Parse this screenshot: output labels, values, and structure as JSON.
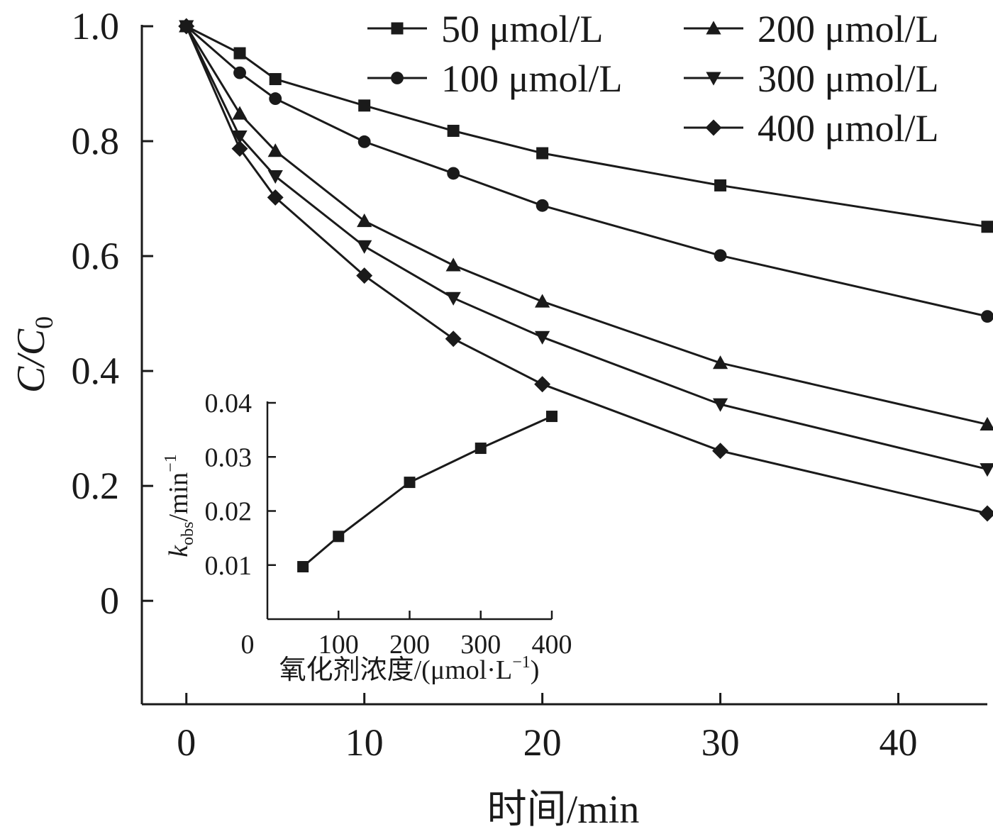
{
  "chart_data": [
    {
      "type": "line",
      "xlabel": "时间/min",
      "ylabel_main": "C/C",
      "ylabel_sub": "0",
      "xlim": [
        -2.5,
        45
      ],
      "ylim": [
        -0.18,
        1.0
      ],
      "xticks": [
        "0",
        "10",
        "20",
        "30",
        "40"
      ],
      "yticks": [
        "0",
        "0.2",
        "0.4",
        "0.6",
        "0.8",
        "1.0"
      ],
      "x": [
        0,
        3,
        5,
        10,
        15,
        20,
        30,
        45
      ],
      "legend_position": "top-right",
      "legend_columns": 2,
      "series": [
        {
          "name": "50 μmol/L",
          "marker": "square",
          "values": [
            1.0,
            0.953,
            0.908,
            0.862,
            0.818,
            0.779,
            0.723,
            0.651
          ]
        },
        {
          "name": "100 μmol/L",
          "marker": "circle",
          "values": [
            1.0,
            0.919,
            0.874,
            0.799,
            0.744,
            0.688,
            0.601,
            0.495
          ]
        },
        {
          "name": "200 μmol/L",
          "marker": "triangle-up",
          "values": [
            1.0,
            0.848,
            0.783,
            0.661,
            0.584,
            0.521,
            0.414,
            0.307
          ]
        },
        {
          "name": "300 μmol/L",
          "marker": "triangle-down",
          "values": [
            1.0,
            0.808,
            0.739,
            0.617,
            0.527,
            0.459,
            0.342,
            0.229
          ]
        },
        {
          "name": "400 μmol/L",
          "marker": "diamond",
          "values": [
            1.0,
            0.787,
            0.702,
            0.566,
            0.456,
            0.377,
            0.261,
            0.152
          ]
        }
      ]
    },
    {
      "type": "line",
      "position": "inset",
      "xlabel_main": "氧化剂浓度/(μmol·L",
      "xlabel_sup": "−1",
      "xlabel_end": ")",
      "ylabel_k": "k",
      "ylabel_sub": "obs",
      "ylabel_unit": "/min",
      "ylabel_sup": "−1",
      "xlim": [
        0,
        400
      ],
      "ylim": [
        0,
        0.04
      ],
      "xticks": [
        "0",
        "100",
        "200",
        "300",
        "400"
      ],
      "yticks": [
        "0.01",
        "0.02",
        "0.03",
        "0.04"
      ],
      "x": [
        50,
        100,
        200,
        300,
        400
      ],
      "series": [
        {
          "marker": "square",
          "values": [
            0.0097,
            0.0153,
            0.0253,
            0.0316,
            0.0375
          ]
        }
      ]
    }
  ]
}
